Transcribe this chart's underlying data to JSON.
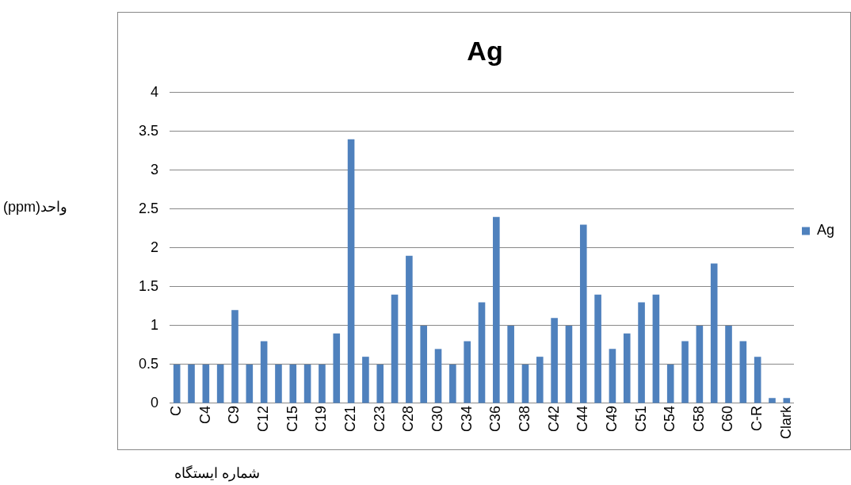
{
  "chart_data": {
    "type": "bar",
    "title": "Ag",
    "xlabel": "شماره ایستگاه",
    "ylabel": "واحد(ppm)",
    "categories": [
      "C",
      null,
      "C4",
      null,
      "C9",
      null,
      "C12",
      null,
      "C15",
      null,
      "C19",
      null,
      "C21",
      null,
      "C23",
      null,
      "C28",
      null,
      "C30",
      null,
      "C34",
      null,
      "C36",
      null,
      "C38",
      null,
      "C42",
      null,
      "C44",
      null,
      "C49",
      null,
      "C51",
      null,
      "C54",
      null,
      "C58",
      null,
      "C60",
      null,
      "C-R",
      null,
      "Clark"
    ],
    "series": [
      {
        "name": "Ag",
        "color": "#4f81bd",
        "values": [
          0.5,
          0.5,
          0.5,
          0.5,
          1.2,
          0.5,
          0.8,
          0.5,
          0.5,
          0.5,
          0.5,
          0.9,
          3.4,
          0.6,
          0.5,
          1.4,
          1.9,
          1.0,
          0.7,
          0.5,
          0.8,
          1.3,
          2.4,
          1.0,
          0.5,
          0.6,
          1.1,
          1.0,
          2.3,
          1.4,
          0.7,
          0.9,
          1.3,
          1.4,
          0.5,
          0.8,
          1.0,
          1.8,
          1.0,
          0.8,
          0.6,
          0.07,
          0.07
        ]
      }
    ],
    "ylim": [
      0,
      4
    ],
    "yticks": [
      0,
      0.5,
      1,
      1.5,
      2,
      2.5,
      3,
      3.5,
      4
    ],
    "grid": "y",
    "legend": "right"
  }
}
